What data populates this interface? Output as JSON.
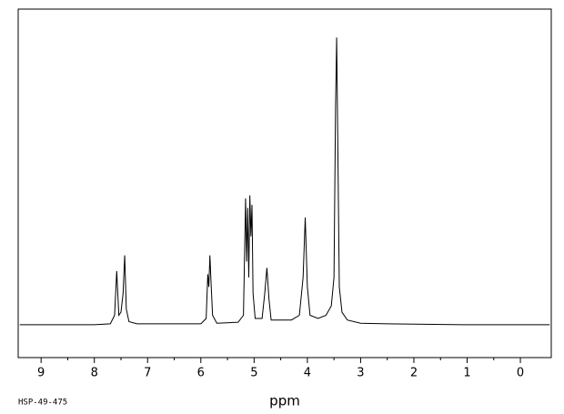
{
  "chart_data": {
    "type": "line",
    "x_label": "ppm",
    "footnote": "HSP-49-475",
    "color": "#000000",
    "grid": false,
    "xlim": [
      9.43,
      -0.58
    ],
    "ylim": [
      -10.4,
      100
    ],
    "xticks": [
      9,
      8,
      7,
      6,
      5,
      4,
      3,
      2,
      1,
      0
    ],
    "x": [
      9.4,
      8.0,
      7.7,
      7.62,
      7.58,
      7.54,
      7.5,
      7.46,
      7.43,
      7.4,
      7.35,
      7.2,
      6.0,
      5.9,
      5.87,
      5.85,
      5.83,
      5.81,
      5.78,
      5.7,
      5.3,
      5.2,
      5.16,
      5.14,
      5.12,
      5.1,
      5.08,
      5.06,
      5.04,
      5.02,
      4.98,
      4.85,
      4.8,
      4.76,
      4.72,
      4.68,
      4.3,
      4.15,
      4.08,
      4.04,
      4.0,
      3.95,
      3.8,
      3.65,
      3.55,
      3.5,
      3.47,
      3.45,
      3.43,
      3.4,
      3.35,
      3.25,
      3.0,
      2.5,
      1.0,
      -0.55
    ],
    "values": [
      0,
      0,
      0.3,
      3,
      17,
      3,
      4,
      10,
      22,
      5,
      1,
      0.3,
      0.3,
      2,
      16,
      12,
      22,
      14,
      3,
      0.5,
      0.8,
      3,
      40,
      20,
      37,
      15,
      41,
      28,
      38,
      10,
      2,
      2,
      10,
      18,
      8,
      1.5,
      1.5,
      3,
      15,
      34,
      12,
      3,
      2,
      3,
      6,
      15,
      70,
      91,
      60,
      12,
      4,
      1.5,
      0.5,
      0.3,
      0,
      0
    ]
  }
}
